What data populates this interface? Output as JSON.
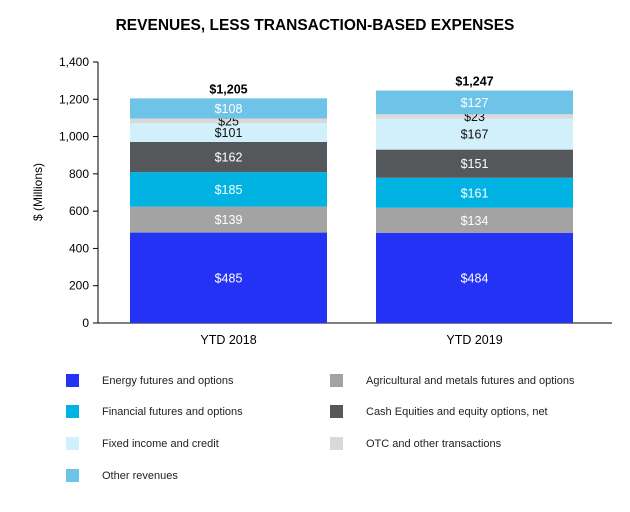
{
  "chart_data": {
    "type": "bar",
    "stacked": true,
    "title": "REVENUES, LESS TRANSACTION-BASED EXPENSES",
    "xlabel": "",
    "ylabel": "$ (Millions)",
    "ylim": [
      0,
      1400
    ],
    "yticks": [
      "0",
      "200",
      "400",
      "600",
      "800",
      "1,000",
      "1,200",
      "1,400"
    ],
    "ytick_values": [
      0,
      200,
      400,
      600,
      800,
      1000,
      1200,
      1400
    ],
    "grid": false,
    "legend_position": "bottom",
    "categories": [
      "YTD 2018",
      "YTD 2019"
    ],
    "totals": [
      "$1,205",
      "$1,247"
    ],
    "total_values": [
      1205,
      1247
    ],
    "series": [
      {
        "name": "Energy futures and options",
        "values": [
          485,
          484
        ],
        "labels": [
          "$485",
          "$484"
        ],
        "color": "#2432F5",
        "label_color": "#ffffff"
      },
      {
        "name": "Agricultural and metals futures and options",
        "values": [
          139,
          134
        ],
        "labels": [
          "$139",
          "$134"
        ],
        "color": "#A3A3A3",
        "label_color": "#ffffff"
      },
      {
        "name": "Financial futures and options",
        "values": [
          185,
          161
        ],
        "labels": [
          "$185",
          "$161"
        ],
        "color": "#00B3E3",
        "label_color": "#ffffff"
      },
      {
        "name": "Cash Equities and equity options, net",
        "values": [
          162,
          151
        ],
        "labels": [
          "$162",
          "$151"
        ],
        "color": "#54585B",
        "label_color": "#ffffff"
      },
      {
        "name": "Fixed income and credit",
        "values": [
          101,
          167
        ],
        "labels": [
          "$101",
          "$167"
        ],
        "color": "#D2F0FC",
        "label_color": "#111111"
      },
      {
        "name": "OTC and other transactions",
        "values": [
          25,
          23
        ],
        "labels": [
          "$25",
          "$23"
        ],
        "color": "#D9D9D9",
        "label_color": "#111111"
      },
      {
        "name": "Other revenues",
        "values": [
          108,
          127
        ],
        "labels": [
          "$108",
          "$127"
        ],
        "color": "#6EC4E8",
        "label_color": "#ffffff"
      }
    ],
    "legend_order": [
      0,
      1,
      2,
      3,
      4,
      5,
      6
    ]
  }
}
